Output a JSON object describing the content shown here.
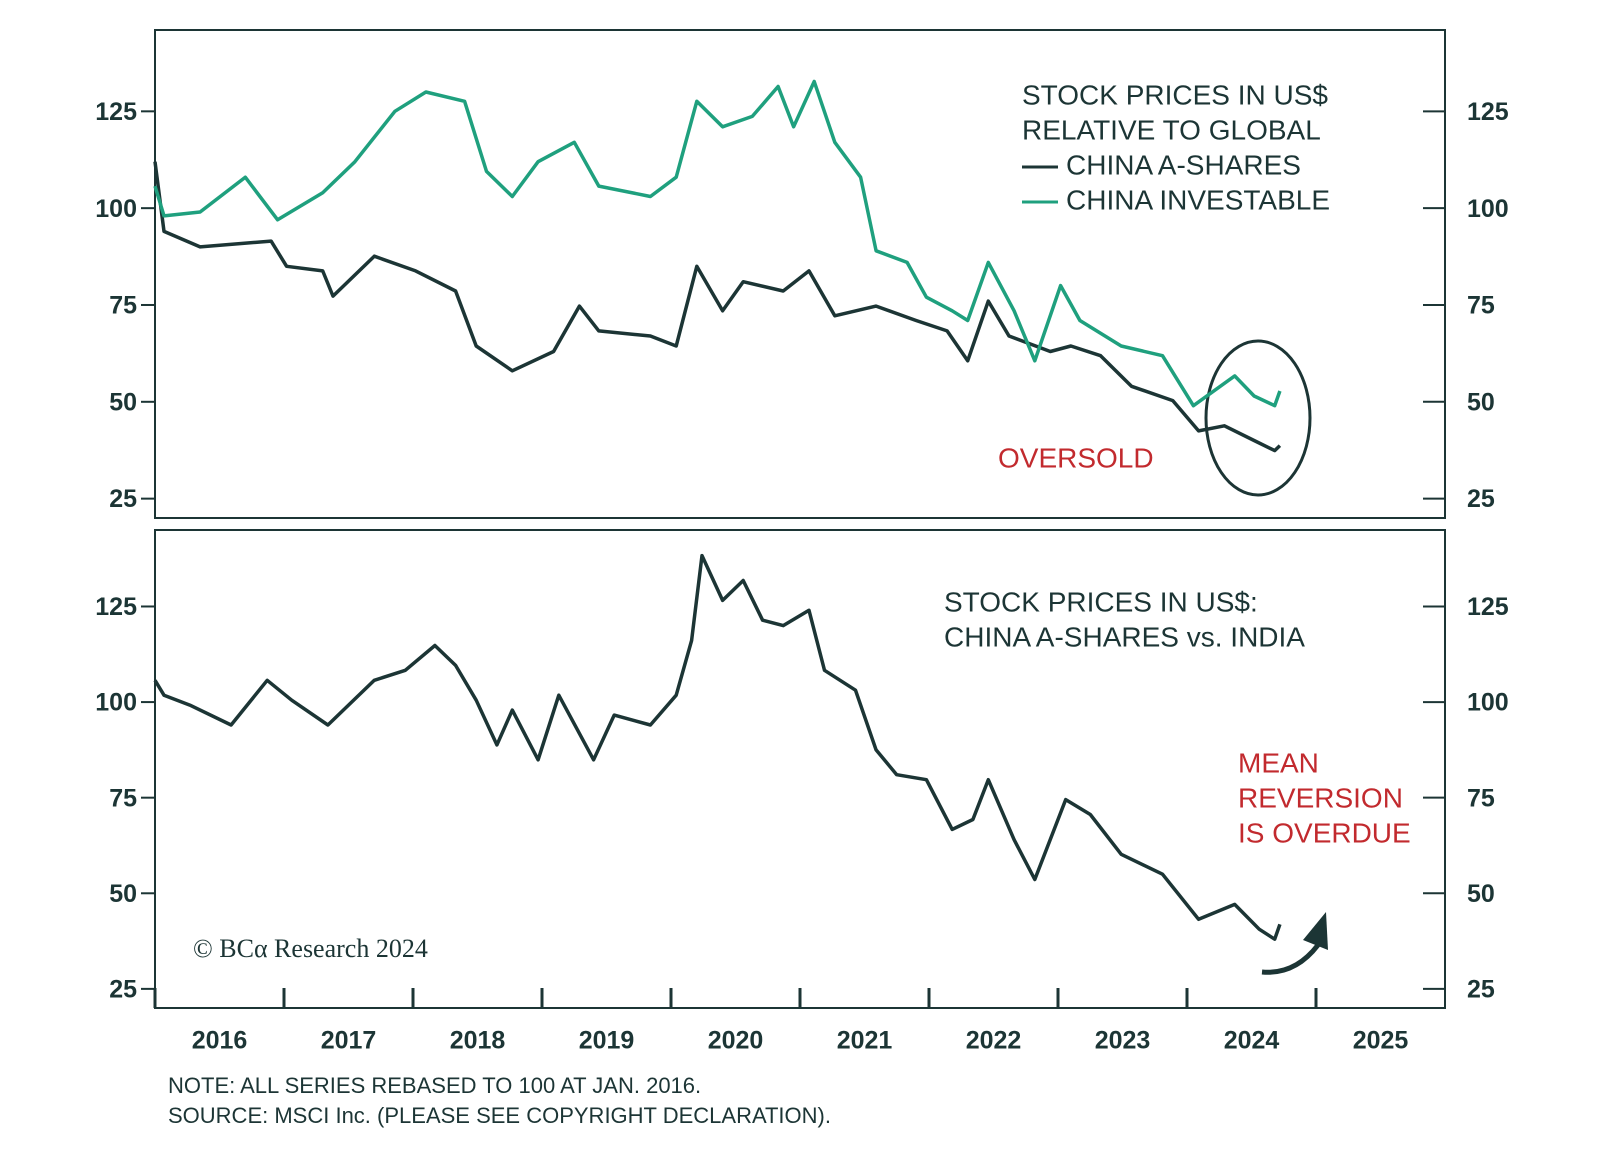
{
  "chart_data": [
    {
      "type": "line",
      "title": [
        "STOCK PRICES IN US$",
        "RELATIVE TO GLOBAL"
      ],
      "annotation": [
        "OVERSOLD"
      ],
      "xlim": [
        2016,
        2026
      ],
      "ylim": [
        20,
        146
      ],
      "yticks": [
        25,
        50,
        75,
        100,
        125
      ],
      "series": [
        {
          "name": "CHINA A-SHARES",
          "color": "#1c3535",
          "x": [
            2016.0,
            2016.07,
            2016.35,
            2016.9,
            2017.02,
            2017.3,
            2017.38,
            2017.7,
            2018.02,
            2018.33,
            2018.49,
            2018.77,
            2019.09,
            2019.29,
            2019.44,
            2019.84,
            2020.04,
            2020.2,
            2020.4,
            2020.56,
            2020.87,
            2021.07,
            2021.27,
            2021.59,
            2021.9,
            2022.14,
            2022.3,
            2022.46,
            2022.62,
            2022.94,
            2023.1,
            2023.33,
            2023.57,
            2023.89,
            2024.09,
            2024.29,
            2024.52,
            2024.68,
            2024.72
          ],
          "values": [
            112,
            94,
            90,
            91.5,
            85,
            83.8,
            77.3,
            87.6,
            83.8,
            78.6,
            64.4,
            58,
            63,
            74.7,
            68.3,
            67,
            64.4,
            85,
            73.5,
            81,
            78.6,
            83.8,
            72.2,
            74.7,
            71,
            68.3,
            60.6,
            76,
            67,
            63,
            64.4,
            61.9,
            54,
            50.3,
            42.5,
            43.8,
            40,
            37.4,
            38.7
          ]
        },
        {
          "name": "CHINA INVESTABLE",
          "color": "#1fa07e",
          "x": [
            2016.0,
            2016.07,
            2016.35,
            2016.7,
            2016.95,
            2017.3,
            2017.55,
            2017.86,
            2018.1,
            2018.4,
            2018.57,
            2018.77,
            2018.97,
            2019.25,
            2019.44,
            2019.84,
            2020.04,
            2020.2,
            2020.4,
            2020.63,
            2020.83,
            2020.95,
            2021.11,
            2021.27,
            2021.47,
            2021.59,
            2021.83,
            2021.98,
            2022.18,
            2022.3,
            2022.46,
            2022.66,
            2022.82,
            2023.02,
            2023.17,
            2023.49,
            2023.81,
            2024.05,
            2024.37,
            2024.52,
            2024.68,
            2024.72
          ],
          "values": [
            105.7,
            98,
            99,
            108,
            97,
            104,
            112,
            125,
            130,
            127.6,
            109.5,
            103,
            112,
            117,
            105.7,
            103,
            108,
            127.6,
            121,
            123.7,
            131.4,
            121,
            132.7,
            117,
            108,
            89,
            86,
            77,
            73.5,
            71,
            86,
            73.5,
            60.6,
            80,
            71,
            64.4,
            61.9,
            49,
            56.7,
            51.5,
            49,
            52.8
          ]
        }
      ]
    },
    {
      "type": "line",
      "title": [
        "STOCK PRICES IN US$:",
        "CHINA A-SHARES vs. INDIA"
      ],
      "annotation": [
        "MEAN",
        "REVERSION",
        "IS OVERDUE"
      ],
      "credit": "© BCα Research 2024",
      "xlim": [
        2016,
        2026
      ],
      "xticks": [
        2016,
        2017,
        2018,
        2019,
        2020,
        2021,
        2022,
        2023,
        2024,
        2025
      ],
      "ylim": [
        20,
        145
      ],
      "yticks": [
        25,
        50,
        75,
        100,
        125
      ],
      "series": [
        {
          "color": "#1c3535",
          "x": [
            2016.0,
            2016.07,
            2016.27,
            2016.59,
            2016.87,
            2017.06,
            2017.34,
            2017.7,
            2017.94,
            2018.17,
            2018.33,
            2018.49,
            2018.65,
            2018.77,
            2018.97,
            2019.13,
            2019.4,
            2019.56,
            2019.84,
            2020.04,
            2020.16,
            2020.24,
            2020.4,
            2020.56,
            2020.71,
            2020.87,
            2021.07,
            2021.19,
            2021.43,
            2021.59,
            2021.75,
            2021.98,
            2022.18,
            2022.34,
            2022.46,
            2022.66,
            2022.82,
            2023.06,
            2023.25,
            2023.49,
            2023.81,
            2024.09,
            2024.37,
            2024.56,
            2024.68,
            2024.72
          ],
          "values": [
            105.7,
            101.8,
            99.2,
            94,
            105.7,
            100.5,
            94,
            105.7,
            108.3,
            114.8,
            109.6,
            100.5,
            88.8,
            97.9,
            84.9,
            101.8,
            84.9,
            96.6,
            94,
            101.8,
            116.1,
            138.3,
            126.6,
            131.8,
            121.4,
            120,
            124,
            108.3,
            103.1,
            87.5,
            81,
            79.7,
            66.7,
            69.3,
            79.7,
            64,
            53.6,
            74.5,
            70.6,
            60.2,
            55,
            43.2,
            47.1,
            40.6,
            38,
            41.9
          ]
        }
      ]
    }
  ],
  "footer": {
    "note": "NOTE: ALL SERIES REBASED TO 100 AT JAN. 2016.",
    "source": "SOURCE: MSCI Inc. (PLEASE SEE COPYRIGHT DECLARATION)."
  }
}
